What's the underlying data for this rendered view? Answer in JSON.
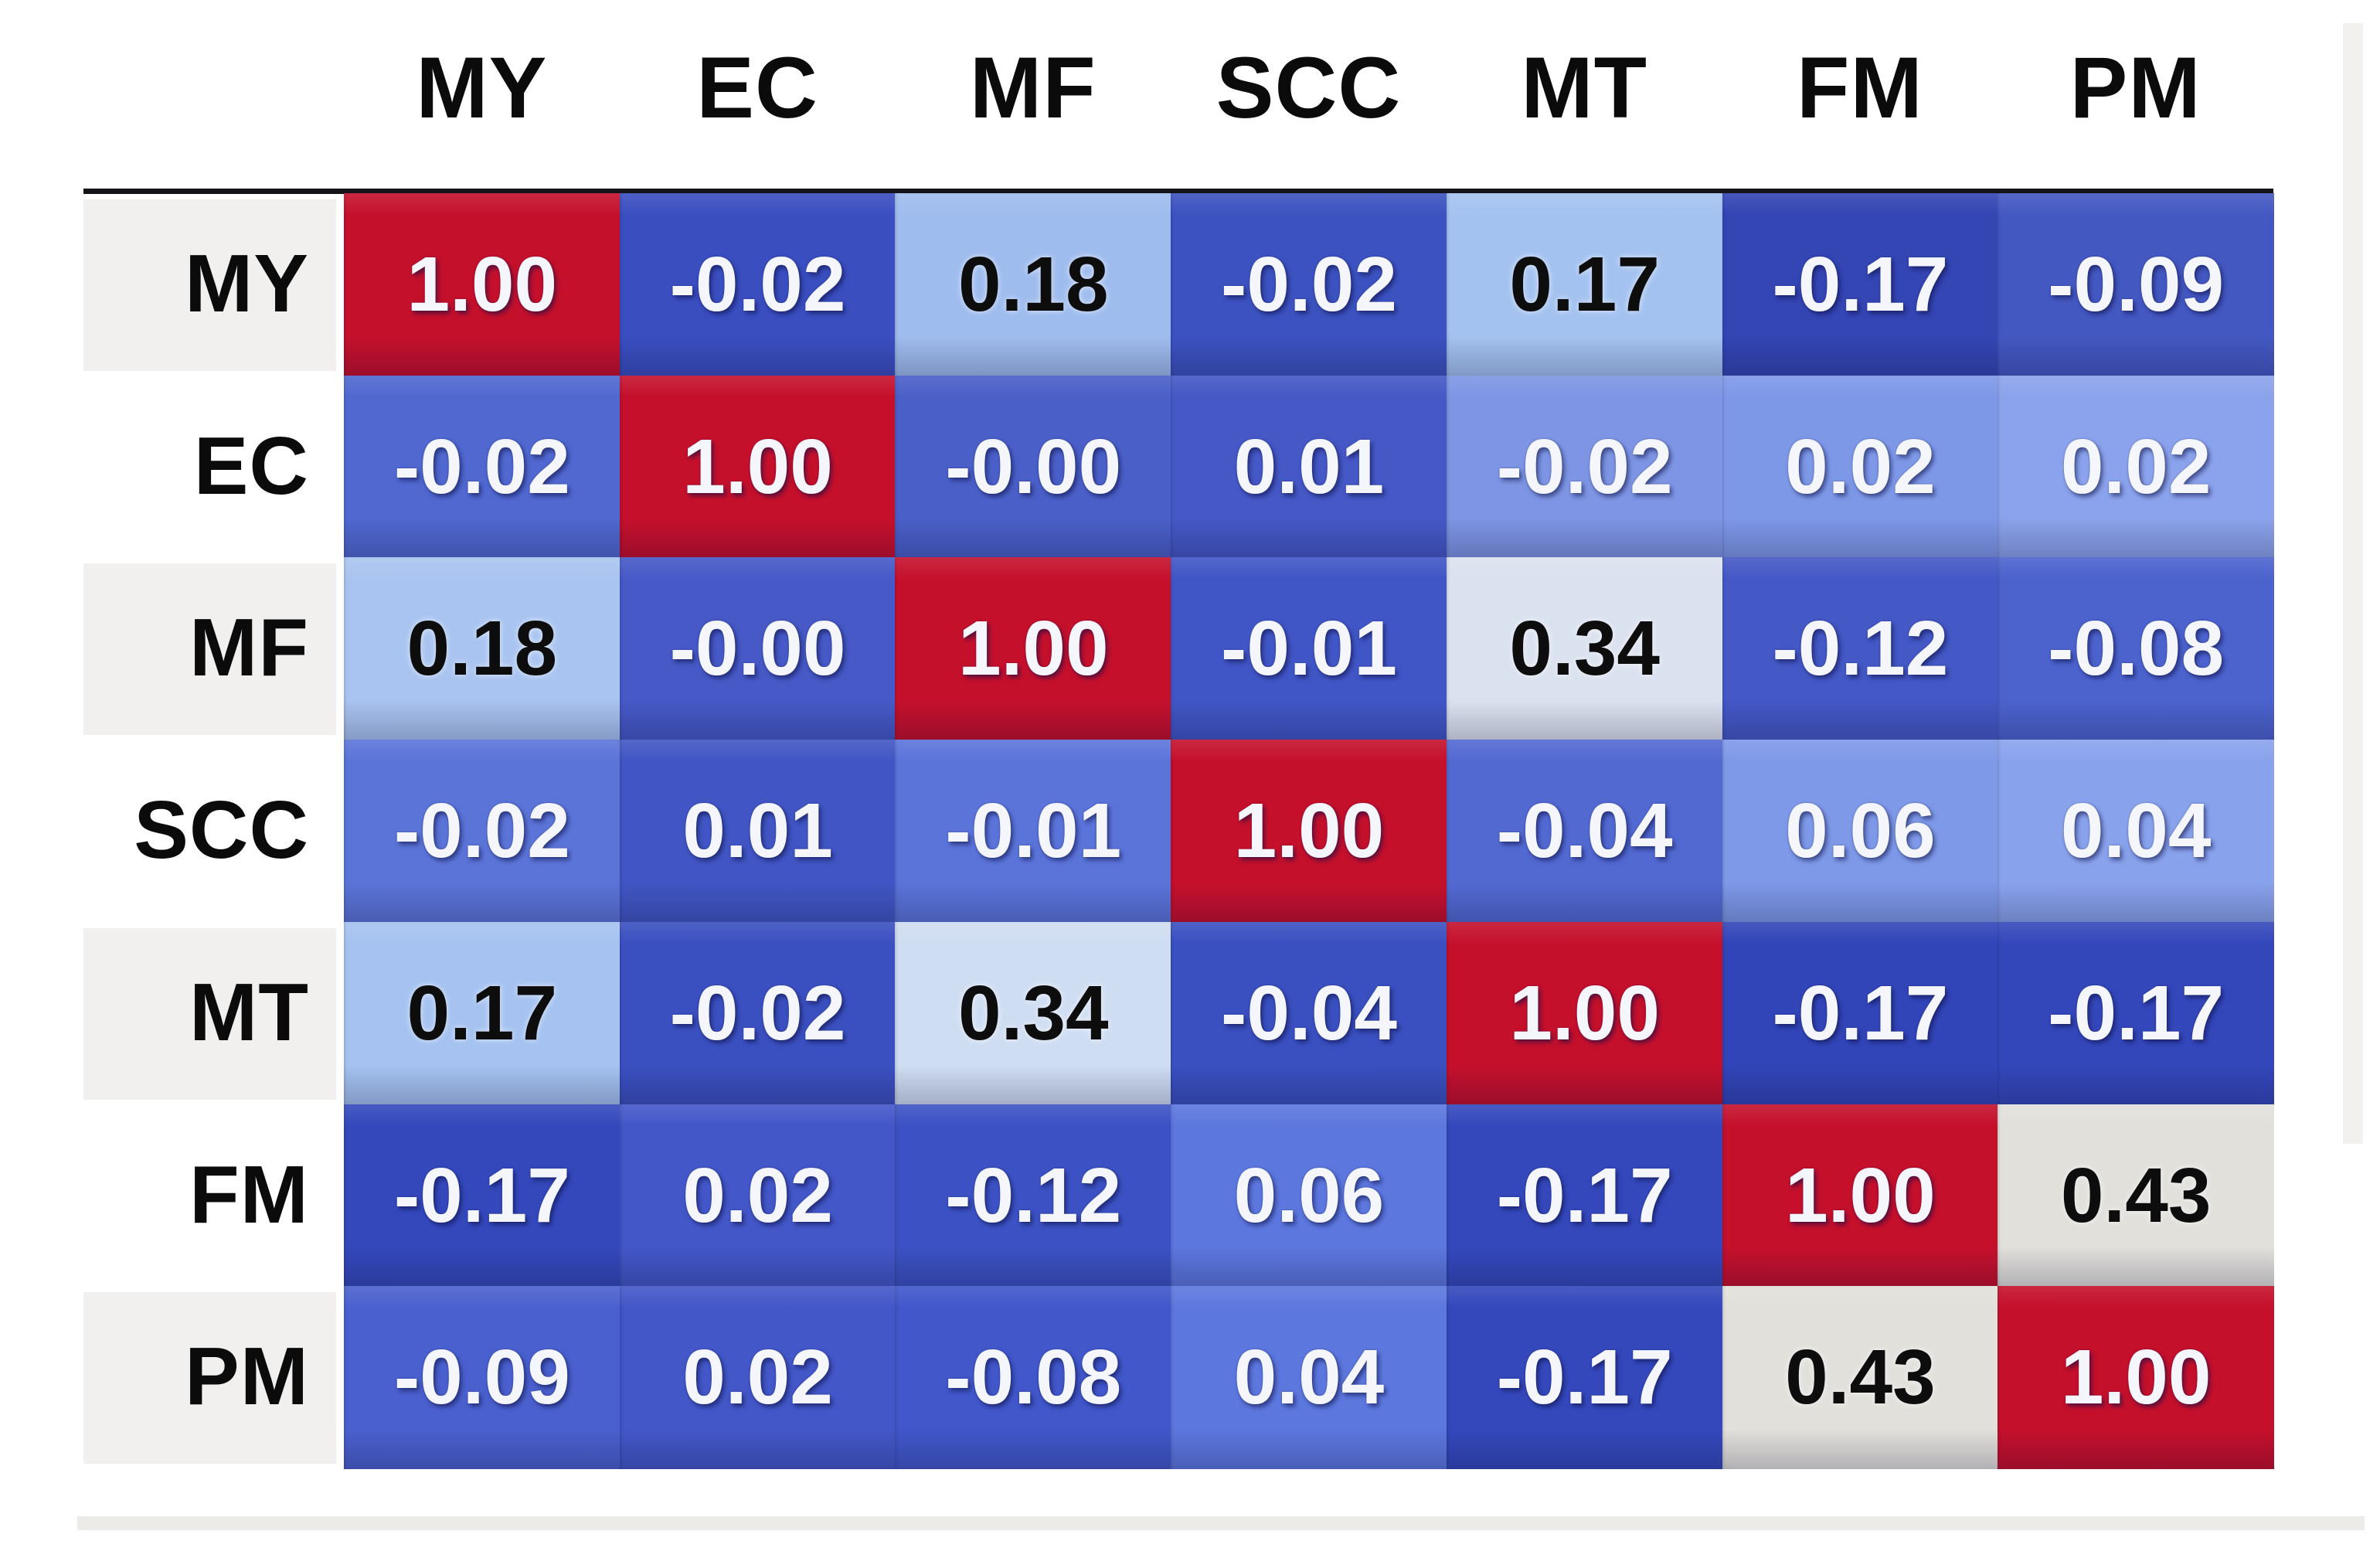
{
  "chart_data": {
    "type": "heatmap",
    "title": "",
    "x_labels": [
      "MY",
      "EC",
      "MF",
      "SCC",
      "MT",
      "FM",
      "PM"
    ],
    "y_labels": [
      "MY",
      "EC",
      "MF",
      "SCC",
      "MT",
      "FM",
      "PM"
    ],
    "values": [
      [
        1.0,
        -0.02,
        0.18,
        -0.02,
        0.17,
        -0.17,
        -0.09
      ],
      [
        -0.02,
        1.0,
        -0.0,
        0.01,
        -0.02,
        0.02,
        0.02
      ],
      [
        0.18,
        -0.0,
        1.0,
        -0.01,
        0.34,
        -0.12,
        -0.08
      ],
      [
        -0.02,
        0.01,
        -0.01,
        1.0,
        -0.04,
        0.06,
        0.04
      ],
      [
        0.17,
        -0.02,
        0.34,
        -0.04,
        1.0,
        -0.17,
        -0.17
      ],
      [
        -0.17,
        0.02,
        -0.12,
        0.06,
        -0.17,
        1.0,
        0.43
      ],
      [
        -0.09,
        0.02,
        -0.08,
        0.04,
        -0.17,
        0.43,
        1.0
      ]
    ],
    "cell_text": [
      [
        "1.00",
        "-0.02",
        "0.18",
        "-0.02",
        "0.17",
        "-0.17",
        "-0.09"
      ],
      [
        "-0.02",
        "1.00",
        "-0.00",
        "0.01",
        "-0.02",
        "0.02",
        "0.02"
      ],
      [
        "0.18",
        "-0.00",
        "1.00",
        "-0.01",
        "0.34",
        "-0.12",
        "-0.08"
      ],
      [
        "-0.02",
        "0.01",
        "-0.01",
        "1.00",
        "-0.04",
        "0.06",
        "0.04"
      ],
      [
        "0.17",
        "-0.02",
        "0.34",
        "-0.04",
        "1.00",
        "-0.17",
        "-0.17"
      ],
      [
        "-0.17",
        "0.02",
        "-0.12",
        "0.06",
        "-0.17",
        "1.00",
        "0.43"
      ],
      [
        "-0.09",
        "0.02",
        "-0.08",
        "0.04",
        "-0.17",
        "0.43",
        "1.00"
      ]
    ],
    "cell_colors": [
      [
        "#c5102c",
        "#3a4ec0",
        "#9fbcee",
        "#3c52c0",
        "#a4c2f0",
        "#3445b4",
        "#4458c2"
      ],
      [
        "#5068d0",
        "#c5102c",
        "#4a5fc8",
        "#4558c6",
        "#7d95e4",
        "#7e98e8",
        "#8ba3ec"
      ],
      [
        "#a9c4f0",
        "#4659c6",
        "#c5102c",
        "#4156c6",
        "#dbe2ef",
        "#4458c6",
        "#4c63ce"
      ],
      [
        "#5b74d8",
        "#4156c4",
        "#5b74da",
        "#c5102c",
        "#5269d2",
        "#7e99e8",
        "#89a2ec"
      ],
      [
        "#a5c2f0",
        "#3b50c0",
        "#cfddf2",
        "#3a50c0",
        "#c5102c",
        "#3245b8",
        "#3447ba"
      ],
      [
        "#3448bc",
        "#4357c8",
        "#3c52c4",
        "#5c77de",
        "#3448bc",
        "#c5102c",
        "#e2e0db"
      ],
      [
        "#4a60ce",
        "#4357c8",
        "#4157ca",
        "#5c77de",
        "#3448bc",
        "#e2e0db",
        "#c5102c"
      ]
    ],
    "cell_text_colors": [
      [
        "white",
        "white",
        "black",
        "white",
        "black",
        "white",
        "white"
      ],
      [
        "white",
        "white",
        "white",
        "white",
        "white",
        "white",
        "white"
      ],
      [
        "black",
        "white",
        "white",
        "white",
        "black",
        "white",
        "white"
      ],
      [
        "white",
        "white",
        "white",
        "white",
        "white",
        "white",
        "white"
      ],
      [
        "black",
        "white",
        "black",
        "white",
        "white",
        "white",
        "white"
      ],
      [
        "white",
        "white",
        "white",
        "white",
        "white",
        "white",
        "black"
      ],
      [
        "white",
        "white",
        "white",
        "white",
        "white",
        "black",
        "white"
      ]
    ],
    "row_stripe_colors": [
      "#f1f0ef",
      "#ffffff",
      "#f1f0ef",
      "#ffffff",
      "#f1f0ef",
      "#ffffff",
      "#f1f0ef"
    ],
    "diagonal_color": "#c5102c",
    "neutral_high_color": "#e2e0db",
    "legend": "none",
    "grid": false,
    "colormap_hint": "blue (low) to red (1.00 diagonal), near-white around 0.34-0.43"
  }
}
